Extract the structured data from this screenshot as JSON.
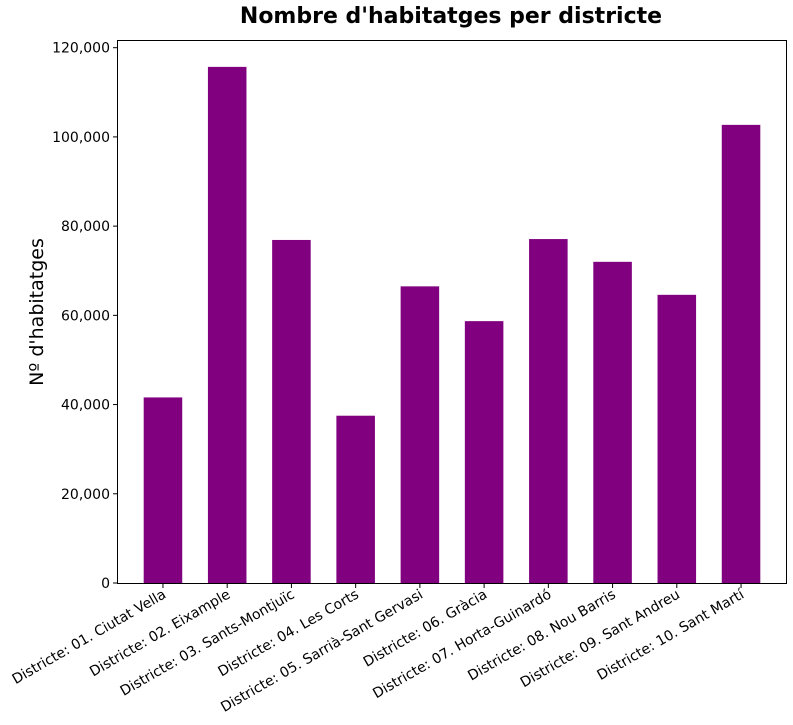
{
  "chart_data": {
    "type": "bar",
    "title": "Nombre d'habitatges per districte",
    "xlabel": "",
    "ylabel": "Nº d'habitatges",
    "categories": [
      "Districte: 01. Ciutat Vella",
      "Districte: 02. Eixample",
      "Districte: 03. Sants-Montjuïc",
      "Districte: 04. Les Corts",
      "Districte: 05. Sarrià-Sant Gervasi",
      "Districte: 06. Gràcia",
      "Districte: 07. Horta-Guinardó",
      "Districte: 08. Nou Barris",
      "Districte: 09. Sant Andreu",
      "Districte: 10. Sant Martí"
    ],
    "values": [
      41600,
      115700,
      76900,
      37500,
      66500,
      58700,
      77100,
      72000,
      64600,
      102700
    ],
    "ylim": [
      0,
      121500
    ],
    "yticks": [
      0,
      20000,
      40000,
      60000,
      80000,
      100000,
      120000
    ],
    "ytick_labels": [
      "0",
      "20,000",
      "40,000",
      "60,000",
      "80,000",
      "100,000",
      "120,000"
    ],
    "bar_color": "#800080",
    "grid": false
  }
}
